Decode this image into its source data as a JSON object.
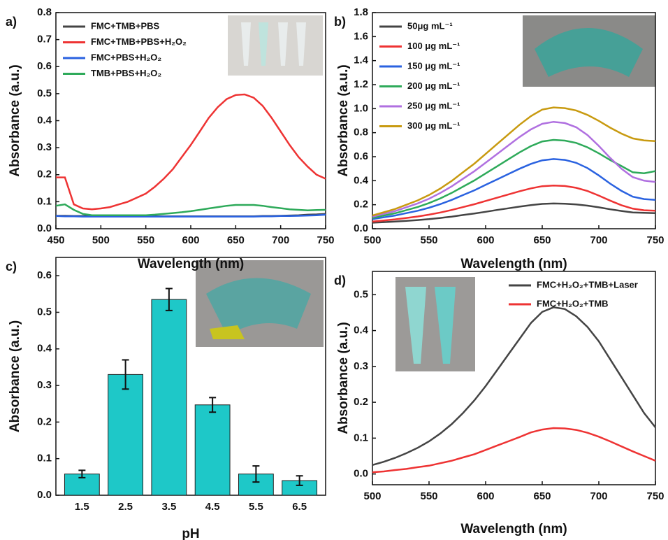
{
  "chart_data": [
    {
      "type": "line",
      "label": "a)",
      "xlabel": "Wavelength (nm)",
      "ylabel": "Absorbance (a.u.)",
      "xlim": [
        450,
        750
      ],
      "xticks": [
        450,
        500,
        550,
        600,
        650,
        700,
        750
      ],
      "ylim": [
        0,
        0.8
      ],
      "yticks": [
        {
          "value": 0,
          "label": "0.0"
        },
        0.1,
        0.2,
        0.3,
        0.4,
        0.5,
        0.6,
        0.7,
        0.8
      ],
      "legend": "upper left",
      "x": [
        450,
        460,
        470,
        480,
        490,
        500,
        510,
        520,
        530,
        540,
        550,
        560,
        570,
        580,
        590,
        600,
        610,
        620,
        630,
        640,
        650,
        660,
        670,
        680,
        690,
        700,
        710,
        720,
        730,
        740,
        750
      ],
      "series": [
        {
          "name": "FMC+TMB+PBS",
          "color": "#444444",
          "values": [
            0.048,
            0.048,
            0.047,
            0.047,
            0.047,
            0.046,
            0.046,
            0.046,
            0.046,
            0.046,
            0.046,
            0.046,
            0.046,
            0.046,
            0.046,
            0.046,
            0.046,
            0.046,
            0.046,
            0.046,
            0.046,
            0.046,
            0.046,
            0.047,
            0.047,
            0.048,
            0.049,
            0.05,
            0.052,
            0.053,
            0.055
          ]
        },
        {
          "name": "FMC+TMB+PBS+H₂O₂",
          "color": "#ee3333",
          "values": [
            0.19,
            0.19,
            0.09,
            0.075,
            0.072,
            0.075,
            0.08,
            0.09,
            0.1,
            0.115,
            0.13,
            0.155,
            0.185,
            0.22,
            0.265,
            0.31,
            0.36,
            0.41,
            0.45,
            0.48,
            0.495,
            0.497,
            0.485,
            0.455,
            0.41,
            0.36,
            0.31,
            0.265,
            0.23,
            0.2,
            0.185
          ]
        },
        {
          "name": "FMC+PBS+H₂O₂",
          "color": "#2a62e0",
          "values": [
            0.047,
            0.046,
            0.046,
            0.045,
            0.045,
            0.045,
            0.045,
            0.045,
            0.045,
            0.045,
            0.045,
            0.045,
            0.045,
            0.045,
            0.045,
            0.045,
            0.045,
            0.045,
            0.045,
            0.045,
            0.045,
            0.045,
            0.045,
            0.046,
            0.046,
            0.047,
            0.047,
            0.048,
            0.049,
            0.05,
            0.052
          ]
        },
        {
          "name": "TMB+PBS+H₂O₂",
          "color": "#2eaa5a",
          "values": [
            0.085,
            0.09,
            0.07,
            0.055,
            0.05,
            0.05,
            0.05,
            0.05,
            0.05,
            0.05,
            0.05,
            0.052,
            0.055,
            0.058,
            0.061,
            0.065,
            0.07,
            0.075,
            0.08,
            0.085,
            0.088,
            0.088,
            0.088,
            0.085,
            0.08,
            0.076,
            0.072,
            0.07,
            0.068,
            0.069,
            0.07
          ]
        }
      ]
    },
    {
      "type": "line",
      "label": "b)",
      "xlabel": "Wavelength (nm)",
      "ylabel": "Absorbance (a.u.)",
      "xlim": [
        500,
        750
      ],
      "xticks": [
        500,
        550,
        600,
        650,
        700,
        750
      ],
      "ylim": [
        0,
        1.8
      ],
      "yticks": [
        {
          "value": 0,
          "label": "0.0"
        },
        0.2,
        0.4,
        0.6,
        0.8,
        {
          "value": 1,
          "label": "1.0"
        },
        1.2,
        1.4,
        1.6,
        1.8
      ],
      "legend": "upper left",
      "x": [
        500,
        510,
        520,
        530,
        540,
        550,
        560,
        570,
        580,
        590,
        600,
        610,
        620,
        630,
        640,
        650,
        660,
        670,
        680,
        690,
        700,
        710,
        720,
        730,
        740,
        750
      ],
      "series": [
        {
          "name": "50μg mL⁻¹",
          "color": "#444444",
          "values": [
            0.05,
            0.055,
            0.06,
            0.066,
            0.072,
            0.08,
            0.09,
            0.101,
            0.114,
            0.127,
            0.141,
            0.156,
            0.17,
            0.184,
            0.197,
            0.207,
            0.21,
            0.208,
            0.203,
            0.192,
            0.178,
            0.162,
            0.148,
            0.136,
            0.132,
            0.13
          ]
        },
        {
          "name": "100 μg mL⁻¹",
          "color": "#ee3333",
          "values": [
            0.06,
            0.069,
            0.078,
            0.09,
            0.102,
            0.117,
            0.135,
            0.156,
            0.18,
            0.204,
            0.231,
            0.258,
            0.285,
            0.312,
            0.336,
            0.354,
            0.36,
            0.356,
            0.341,
            0.314,
            0.276,
            0.234,
            0.196,
            0.167,
            0.154,
            0.15
          ]
        },
        {
          "name": "150 μg mL⁻¹",
          "color": "#2a62e0",
          "values": [
            0.08,
            0.095,
            0.11,
            0.13,
            0.15,
            0.175,
            0.205,
            0.24,
            0.28,
            0.32,
            0.365,
            0.41,
            0.455,
            0.5,
            0.54,
            0.57,
            0.58,
            0.573,
            0.549,
            0.505,
            0.444,
            0.376,
            0.315,
            0.267,
            0.247,
            0.24
          ]
        },
        {
          "name": "200 μg mL⁻¹",
          "color": "#2eaa5a",
          "values": [
            0.09,
            0.11,
            0.129,
            0.155,
            0.181,
            0.214,
            0.253,
            0.298,
            0.35,
            0.402,
            0.461,
            0.519,
            0.578,
            0.636,
            0.688,
            0.727,
            0.74,
            0.734,
            0.715,
            0.678,
            0.628,
            0.572,
            0.522,
            0.47,
            0.462,
            0.48
          ]
        },
        {
          "name": "250 μg mL⁻¹",
          "color": "#b070e0",
          "values": [
            0.1,
            0.124,
            0.147,
            0.179,
            0.211,
            0.25,
            0.298,
            0.353,
            0.416,
            0.479,
            0.55,
            0.621,
            0.693,
            0.764,
            0.827,
            0.874,
            0.89,
            0.88,
            0.845,
            0.78,
            0.69,
            0.59,
            0.5,
            0.43,
            0.4,
            0.39
          ]
        },
        {
          "name": "300 μg mL⁻¹",
          "color": "#c89a10",
          "values": [
            0.11,
            0.137,
            0.164,
            0.2,
            0.236,
            0.281,
            0.335,
            0.398,
            0.47,
            0.542,
            0.623,
            0.704,
            0.785,
            0.866,
            0.938,
            0.992,
            1.01,
            1.004,
            0.985,
            0.948,
            0.898,
            0.842,
            0.792,
            0.752,
            0.736,
            0.73
          ]
        }
      ]
    },
    {
      "type": "bar",
      "label": "c)",
      "xlabel": "pH",
      "ylabel": "Absorbance (a.u.)",
      "categories": [
        "1.5",
        "2.5",
        "3.5",
        "4.5",
        "5.5",
        "6.5"
      ],
      "values": [
        0.058,
        0.33,
        0.535,
        0.247,
        0.058,
        0.04
      ],
      "errors": [
        0.01,
        0.04,
        0.03,
        0.02,
        0.022,
        0.013
      ],
      "color": "#1ec8c8",
      "ylim": [
        0,
        0.65
      ],
      "yticks": [
        {
          "value": 0,
          "label": "0.0"
        },
        0.1,
        0.2,
        0.3,
        0.4,
        0.5,
        0.6
      ]
    },
    {
      "type": "line",
      "label": "d)",
      "xlabel": "Wavelength (nm)",
      "ylabel": "Absorbance (a.u.)",
      "xlim": [
        500,
        750
      ],
      "xticks": [
        500,
        550,
        600,
        650,
        700,
        750
      ],
      "ylim": [
        -0.03,
        0.565
      ],
      "yticks": [
        {
          "value": 0,
          "label": "0.0"
        },
        0.1,
        0.2,
        0.3,
        0.4,
        0.5
      ],
      "legend": "upper right",
      "x": [
        500,
        510,
        520,
        530,
        540,
        550,
        560,
        570,
        580,
        590,
        600,
        610,
        620,
        630,
        640,
        650,
        660,
        670,
        680,
        690,
        700,
        710,
        720,
        730,
        740,
        750
      ],
      "series": [
        {
          "name": "FMC+H₂O₂+TMB+Laser",
          "color": "#444444",
          "values": [
            0.025,
            0.034,
            0.045,
            0.058,
            0.073,
            0.091,
            0.113,
            0.139,
            0.17,
            0.205,
            0.245,
            0.289,
            0.333,
            0.377,
            0.421,
            0.452,
            0.465,
            0.46,
            0.44,
            0.41,
            0.37,
            0.32,
            0.27,
            0.22,
            0.17,
            0.13
          ]
        },
        {
          "name": "FMC+H₂O₂+TMB",
          "color": "#ee3333",
          "values": [
            0.005,
            0.007,
            0.011,
            0.014,
            0.019,
            0.023,
            0.03,
            0.037,
            0.046,
            0.055,
            0.067,
            0.079,
            0.091,
            0.103,
            0.116,
            0.124,
            0.128,
            0.127,
            0.123,
            0.115,
            0.104,
            0.091,
            0.077,
            0.063,
            0.05,
            0.037
          ]
        }
      ]
    }
  ]
}
